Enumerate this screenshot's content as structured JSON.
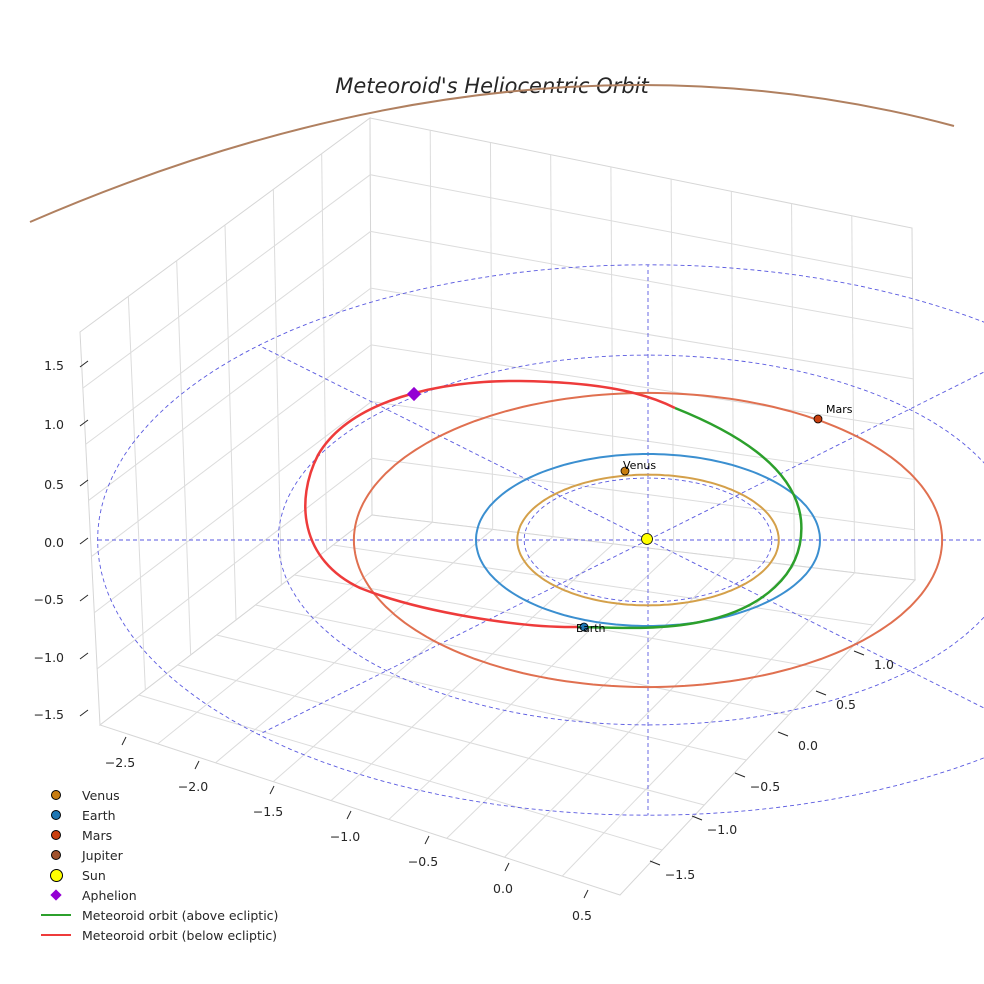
{
  "chart_data": {
    "type": "3d-orbit",
    "title": "Meteoroid's Heliocentric Orbit",
    "axes": {
      "x": {
        "range": [
          -2.5,
          0.5
        ],
        "ticks": [
          "−2.5",
          "−2.0",
          "−1.5",
          "−1.0",
          "−0.5",
          "0.0",
          "0.5"
        ]
      },
      "y": {
        "range": [
          -1.5,
          1.0
        ],
        "ticks": [
          "−1.5",
          "−1.0",
          "−0.5",
          "0.0",
          "0.5",
          "1.0"
        ]
      },
      "z": {
        "range": [
          -1.5,
          1.5
        ],
        "ticks": [
          "1.5",
          "1.0",
          "0.5",
          "0.0",
          "−0.5",
          "−1.0",
          "−1.5"
        ]
      }
    },
    "planets": [
      {
        "name": "Venus",
        "semi_major_au": 0.72,
        "color": "#d4a04a",
        "marker_color": "#c87d12",
        "label": "Venus"
      },
      {
        "name": "Earth",
        "semi_major_au": 1.0,
        "color": "#3b8fd0",
        "marker_color": "#1f77b4",
        "label": "Earth"
      },
      {
        "name": "Mars",
        "semi_major_au": 1.52,
        "color": "#e07050",
        "marker_color": "#c9400f",
        "label": "Mars"
      },
      {
        "name": "Jupiter",
        "semi_major_au": 5.2,
        "color": "#b08060",
        "marker_color": "#a0522d",
        "label": ""
      }
    ],
    "sun": {
      "name": "Sun",
      "color": "#ffff00"
    },
    "aphelion": {
      "name": "Aphelion",
      "color": "#9400d3"
    },
    "meteoroid_orbit": [
      {
        "name": "Meteoroid orbit (above ecliptic)",
        "color": "#2ca02c"
      },
      {
        "name": "Meteoroid orbit (below ecliptic)",
        "color": "#ee3b3b"
      }
    ],
    "ecliptic_grid_color": "#5a5ae0"
  },
  "legend": [
    {
      "label": "Venus",
      "kind": "dot",
      "color": "#c87d12"
    },
    {
      "label": "Earth",
      "kind": "dot",
      "color": "#1f77b4"
    },
    {
      "label": "Mars",
      "kind": "dot",
      "color": "#c9400f"
    },
    {
      "label": "Jupiter",
      "kind": "dot",
      "color": "#a0522d"
    },
    {
      "label": "Sun",
      "kind": "sun",
      "color": "#ffff00"
    },
    {
      "label": "Aphelion",
      "kind": "diamond",
      "color": "#9400d3"
    },
    {
      "label": "Meteoroid orbit (above ecliptic)",
      "kind": "line",
      "color": "#2ca02c"
    },
    {
      "label": "Meteoroid orbit (below ecliptic)",
      "kind": "line",
      "color": "#ee3b3b"
    }
  ]
}
